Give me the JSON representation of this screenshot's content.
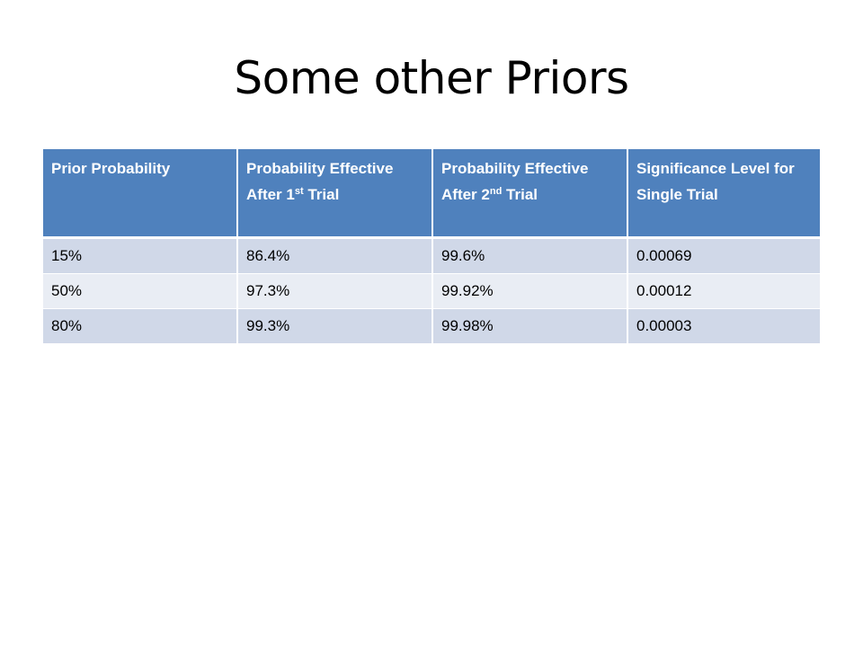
{
  "slide": {
    "title": "Some other Priors"
  },
  "table": {
    "headers": [
      {
        "text": "Prior Probability",
        "sup": "",
        "tail": ""
      },
      {
        "text": "Probability Effective After 1",
        "sup": "st",
        "tail": " Trial"
      },
      {
        "text": "Probability Effective After 2",
        "sup": "nd",
        "tail": " Trial"
      },
      {
        "text": "Significance Level for Single Trial",
        "sup": "",
        "tail": ""
      }
    ],
    "rows": [
      [
        "15%",
        "86.4%",
        "99.6%",
        "0.00069"
      ],
      [
        "50%",
        "97.3%",
        "99.92%",
        "0.00012"
      ],
      [
        "80%",
        "99.3%",
        "99.98%",
        "0.00003"
      ]
    ],
    "colors": {
      "header_bg": "#4f81bd",
      "row_odd_bg": "#d0d8e8",
      "row_even_bg": "#e9edf4"
    }
  }
}
